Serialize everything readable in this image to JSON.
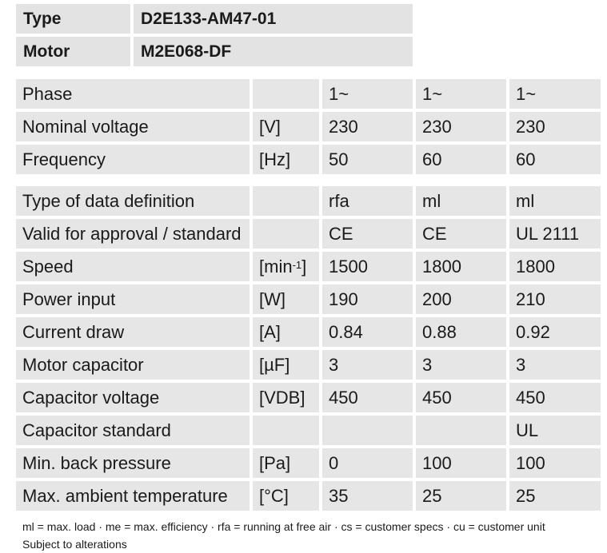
{
  "header": [
    {
      "label": "Type",
      "value": "D2E133-AM47-01"
    },
    {
      "label": "Motor",
      "value": "M2E068-DF"
    }
  ],
  "table1": [
    {
      "label": "Phase",
      "unit": "",
      "v1": "1~",
      "v2": "1~",
      "v3": "1~"
    },
    {
      "label": "Nominal voltage",
      "unit": "[V]",
      "v1": "230",
      "v2": "230",
      "v3": "230"
    },
    {
      "label": "Frequency",
      "unit": "[Hz]",
      "v1": "50",
      "v2": "60",
      "v3": "60"
    }
  ],
  "table2": [
    {
      "label": "Type of data definition",
      "unit": "",
      "v1": "rfa",
      "v2": "ml",
      "v3": "ml"
    },
    {
      "label": "Valid for approval / standard",
      "unit": "",
      "v1": "CE",
      "v2": "CE",
      "v3": "UL 2111"
    },
    {
      "label": "Speed",
      "unit": "[min-1]",
      "v1": "1500",
      "v2": "1800",
      "v3": "1800"
    },
    {
      "label": "Power input",
      "unit": "[W]",
      "v1": "190",
      "v2": "200",
      "v3": "210"
    },
    {
      "label": "Current draw",
      "unit": "[A]",
      "v1": "0.84",
      "v2": "0.88",
      "v3": "0.92"
    },
    {
      "label": "Motor capacitor",
      "unit": "[µF]",
      "v1": "3",
      "v2": "3",
      "v3": "3"
    },
    {
      "label": "Capacitor voltage",
      "unit": "[VDB]",
      "v1": "450",
      "v2": "450",
      "v3": "450"
    },
    {
      "label": "Capacitor standard",
      "unit": "",
      "v1": "",
      "v2": "",
      "v3": "UL"
    },
    {
      "label": "Min. back pressure",
      "unit": "[Pa]",
      "v1": "0",
      "v2": "100",
      "v3": "100"
    },
    {
      "label": "Max. ambient temperature",
      "unit": "[°C]",
      "v1": "35",
      "v2": "25",
      "v3": "25"
    }
  ],
  "notes": {
    "legend": "ml = max. load · me = max. efficiency · rfa = running at free air · cs = customer specs · cu = customer unit",
    "alterations": "Subject to alterations"
  }
}
